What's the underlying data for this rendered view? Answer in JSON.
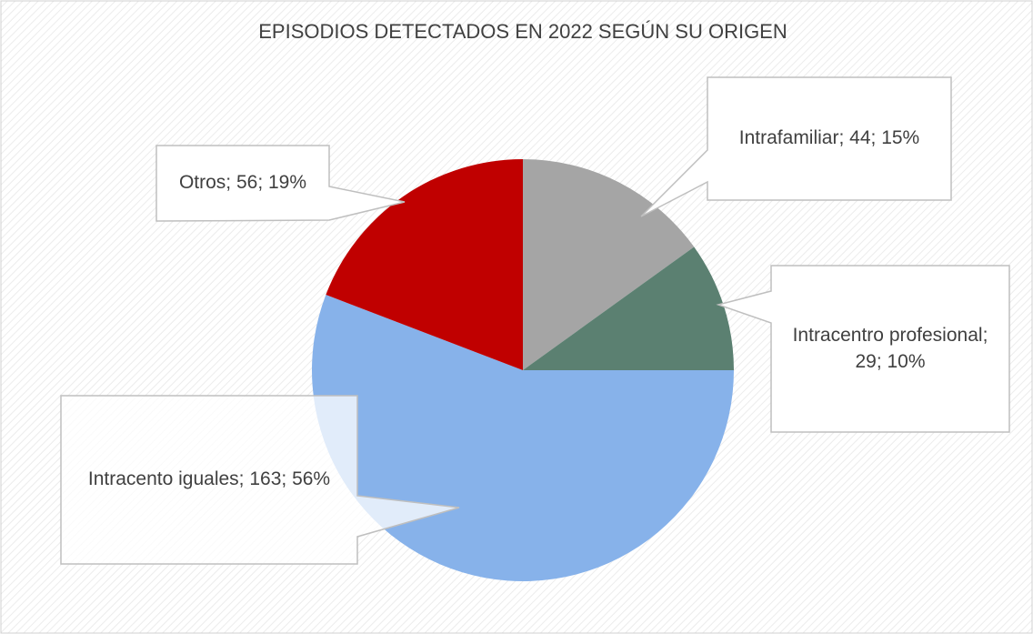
{
  "chart_data": {
    "type": "pie",
    "title": "EPISODIOS DETECTADOS EN 2022 SEGÚN SU ORIGEN",
    "categories": [
      "Intrafamiliar",
      "Intracentro profesional",
      "Intracento iguales",
      "Otros"
    ],
    "values": [
      44,
      29,
      163,
      56
    ],
    "percent_labels": [
      "15%",
      "10%",
      "56%",
      "19%"
    ],
    "label_separator": "; ",
    "colors": [
      "#a5a5a5",
      "#5b8071",
      "#87b2ea",
      "#c00000"
    ]
  }
}
